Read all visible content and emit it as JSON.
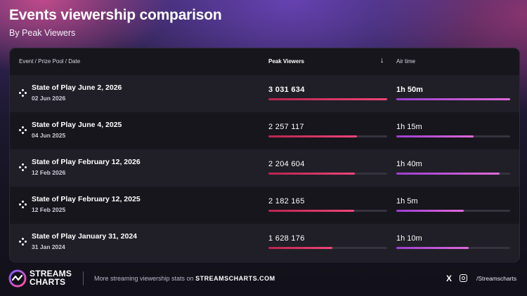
{
  "header": {
    "title": "Events viewership comparison",
    "subtitle": "By Peak Viewers"
  },
  "table": {
    "columns": {
      "event": "Event / Prize Pool / Date",
      "peak": "Peak Viewers",
      "airtime": "Air time"
    },
    "sort_icon": "arrow-down-icon"
  },
  "chart_data": {
    "type": "table",
    "title": "Events viewership comparison",
    "subtitle": "By Peak Viewers",
    "columns": [
      "Event / Prize Pool / Date",
      "Peak Viewers",
      "Air time"
    ],
    "rows": [
      {
        "event": "State of Play June 2, 2026",
        "date": "02 Jun 2026",
        "peak_label": "3 031 634",
        "peak_viewers": 3031634,
        "airtime": "1h 50m",
        "airtime_minutes": 110
      },
      {
        "event": "State of Play June 4, 2025",
        "date": "04 Jun 2025",
        "peak_label": "2 257 117",
        "peak_viewers": 2257117,
        "airtime": "1h 15m",
        "airtime_minutes": 75
      },
      {
        "event": "State of Play February 12, 2026",
        "date": "12 Feb 2026",
        "peak_label": "2 204 604",
        "peak_viewers": 2204604,
        "airtime": "1h 40m",
        "airtime_minutes": 100
      },
      {
        "event": "State of Play February 12, 2025",
        "date": "12 Feb 2025",
        "peak_label": "2 182 165",
        "peak_viewers": 2182165,
        "airtime": "1h 5m",
        "airtime_minutes": 65
      },
      {
        "event": "State of Play January 31, 2024",
        "date": "31 Jan 2024",
        "peak_label": "1 628 176",
        "peak_viewers": 1628176,
        "airtime": "1h 10m",
        "airtime_minutes": 70
      }
    ]
  },
  "footer": {
    "logo_line1": "STREAMS",
    "logo_line2": "CHARTS",
    "more_text": "More streaming viewership stats on",
    "more_link": "STREAMSCHARTS.COM",
    "social_x": "X",
    "handle": "/Streamscharts"
  },
  "colors": {
    "viewers_bar": "#f0457a",
    "airtime_bar": "#e06ad9",
    "panel": "#17161d",
    "row_alt": "#201f27"
  }
}
